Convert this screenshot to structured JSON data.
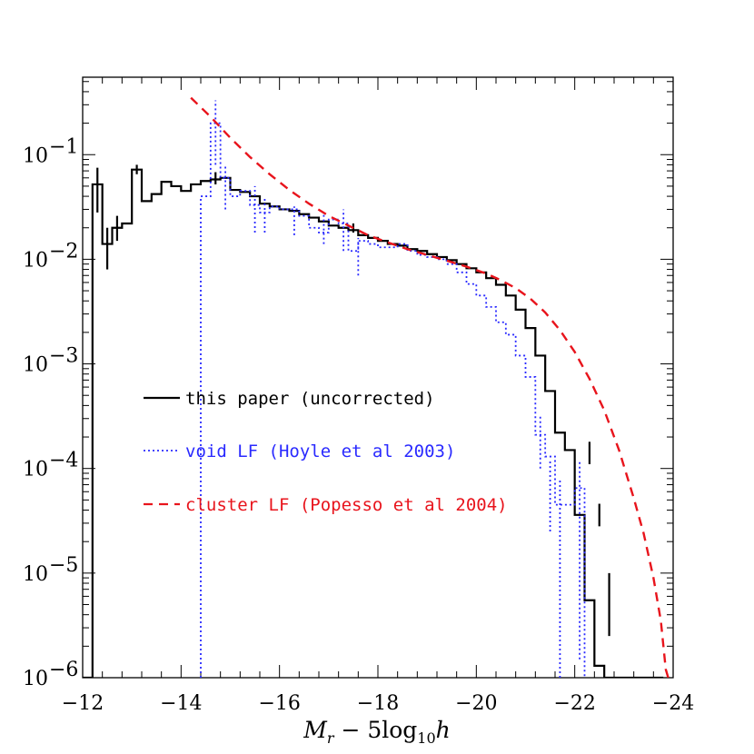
{
  "chart_data": {
    "type": "line",
    "xlabel": {
      "main": "M",
      "sub": "r",
      "mid": " − 5log",
      "sub2": "10",
      "tail": "h"
    },
    "ylabel": "",
    "xlim": [
      -12,
      -24
    ],
    "ylim": [
      1e-06,
      1
    ],
    "y_scale": "log",
    "x_ticks": [
      -12,
      -14,
      -16,
      -18,
      -20,
      -22,
      -24
    ],
    "x_tick_labels": [
      "−12",
      "−14",
      "−16",
      "−18",
      "−20",
      "−22",
      "−24"
    ],
    "y_ticks": [
      {
        "value": 1e-06,
        "base": "10",
        "exp": "−6"
      },
      {
        "value": 1e-05,
        "base": "10",
        "exp": "−5"
      },
      {
        "value": 0.0001,
        "base": "10",
        "exp": "−4"
      },
      {
        "value": 0.001,
        "base": "10",
        "exp": "−3"
      },
      {
        "value": 0.01,
        "base": "10",
        "exp": "−2"
      },
      {
        "value": 0.1,
        "base": "10",
        "exp": "−1"
      }
    ],
    "legend": {
      "placement": "center-left",
      "entries": [
        {
          "label": "this paper (uncorrected)",
          "color": "#000000",
          "style": "solid"
        },
        {
          "label": "void LF (Hoyle et al 2003)",
          "color": "#2a2aff",
          "style": "dotted"
        },
        {
          "label": "cluster LF (Popesso et al 2004)",
          "color": "#e8141c",
          "style": "dashed"
        }
      ]
    },
    "series": [
      {
        "key": "this_paper",
        "kind": "step",
        "color": "#000000",
        "bin_edges": [
          -12.0,
          -12.2,
          -12.4,
          -12.6,
          -12.8,
          -13.0,
          -13.2,
          -13.4,
          -13.6,
          -13.8,
          -14.0,
          -14.2,
          -14.4,
          -14.6,
          -14.8,
          -15.0,
          -15.2,
          -15.4,
          -15.6,
          -15.8,
          -16.0,
          -16.2,
          -16.4,
          -16.6,
          -16.8,
          -17.0,
          -17.2,
          -17.4,
          -17.6,
          -17.8,
          -18.0,
          -18.2,
          -18.4,
          -18.6,
          -18.8,
          -19.0,
          -19.2,
          -19.4,
          -19.6,
          -19.8,
          -20.0,
          -20.2,
          -20.4,
          -20.6,
          -20.8,
          -21.0,
          -21.2,
          -21.4,
          -21.6,
          -21.8,
          -22.0,
          -22.2,
          -22.4,
          -22.6,
          -22.8,
          -23.0,
          -23.2,
          -23.4,
          -23.6,
          -23.8
        ],
        "values": [
          1e-06,
          0.052,
          0.014,
          0.02,
          0.022,
          0.072,
          0.036,
          0.042,
          0.055,
          0.05,
          0.045,
          0.052,
          0.056,
          0.058,
          0.06,
          0.046,
          0.044,
          0.04,
          0.034,
          0.032,
          0.03,
          0.029,
          0.027,
          0.025,
          0.023,
          0.021,
          0.02,
          0.019,
          0.017,
          0.016,
          0.015,
          0.014,
          0.0135,
          0.0125,
          0.012,
          0.0112,
          0.0105,
          0.0098,
          0.009,
          0.0082,
          0.0075,
          0.0066,
          0.0057,
          0.0045,
          0.0033,
          0.0022,
          0.0012,
          0.00055,
          0.00022,
          0.00015,
          3.6e-05,
          5.5e-06,
          1.3e-06,
          1e-06,
          1e-06,
          1e-06,
          1e-06,
          1e-06,
          1e-06
        ],
        "error_bars": [
          {
            "x": -12.3,
            "lo": 0.028,
            "hi": 0.075
          },
          {
            "x": -12.5,
            "lo": 0.008,
            "hi": 0.02
          },
          {
            "x": -12.7,
            "lo": 0.015,
            "hi": 0.026
          },
          {
            "x": -13.1,
            "lo": 0.065,
            "hi": 0.08
          },
          {
            "x": -14.7,
            "lo": 0.052,
            "hi": 0.068
          },
          {
            "x": -17.5,
            "lo": 0.018,
            "hi": 0.022
          },
          {
            "x": -22.3,
            "lo": 0.00011,
            "hi": 0.00018
          },
          {
            "x": -22.5,
            "lo": 2.8e-05,
            "hi": 4.6e-05
          },
          {
            "x": -22.7,
            "lo": 2.5e-06,
            "hi": 1e-05
          }
        ]
      },
      {
        "key": "void_lf",
        "kind": "step",
        "color": "#2a2aff",
        "bin_edges": [
          -14.4,
          -14.6,
          -14.8,
          -15.0,
          -15.2,
          -15.4,
          -15.6,
          -15.8,
          -16.0,
          -16.2,
          -16.4,
          -16.6,
          -16.8,
          -17.0,
          -17.2,
          -17.4,
          -17.6,
          -17.8,
          -18.0,
          -18.2,
          -18.4,
          -18.6,
          -18.8,
          -19.0,
          -19.2,
          -19.4,
          -19.6,
          -19.8,
          -20.0,
          -20.2,
          -20.4,
          -20.6,
          -20.8,
          -21.0,
          -21.2,
          -21.4,
          -21.6,
          -21.8,
          -22.0,
          -22.2
        ],
        "values": [
          0.04,
          0.2,
          0.06,
          0.04,
          0.045,
          0.033,
          0.028,
          0.032,
          0.03,
          0.03,
          0.026,
          0.02,
          0.018,
          0.024,
          0.022,
          0.012,
          0.015,
          0.014,
          0.013,
          0.013,
          0.014,
          0.012,
          0.011,
          0.0105,
          0.01,
          0.009,
          0.0075,
          0.0058,
          0.0045,
          0.0035,
          0.0025,
          0.0019,
          0.0012,
          0.00075,
          0.00021,
          0.00013,
          4.5e-05,
          4.5e-05,
          6.5e-05
        ],
        "error_bars": [
          {
            "x": -14.7,
            "lo": 0.08,
            "hi": 0.33
          },
          {
            "x": -14.9,
            "lo": 0.03,
            "hi": 0.08
          },
          {
            "x": -15.5,
            "lo": 0.018,
            "hi": 0.05
          },
          {
            "x": -15.7,
            "lo": 0.018,
            "hi": 0.04
          },
          {
            "x": -16.3,
            "lo": 0.017,
            "hi": 0.032
          },
          {
            "x": -16.9,
            "lo": 0.014,
            "hi": 0.028
          },
          {
            "x": -17.3,
            "lo": 0.012,
            "hi": 0.03
          },
          {
            "x": -17.6,
            "lo": 0.007,
            "hi": 0.016
          },
          {
            "x": -21.3,
            "lo": 0.0001,
            "hi": 0.00032
          },
          {
            "x": -21.5,
            "lo": 2.5e-05,
            "hi": 0.00012
          },
          {
            "x": -21.7,
            "lo": 1e-06,
            "hi": 8e-05
          },
          {
            "x": -22.1,
            "lo": 1.5e-06,
            "hi": 0.00012
          }
        ]
      },
      {
        "key": "cluster_lf",
        "kind": "curve",
        "color": "#e8141c",
        "points": [
          [
            -14.2,
            0.35
          ],
          [
            -14.6,
            0.23
          ],
          [
            -15.0,
            0.145
          ],
          [
            -15.4,
            0.095
          ],
          [
            -15.8,
            0.065
          ],
          [
            -16.2,
            0.046
          ],
          [
            -16.6,
            0.034
          ],
          [
            -17.0,
            0.026
          ],
          [
            -17.4,
            0.021
          ],
          [
            -17.8,
            0.017
          ],
          [
            -18.2,
            0.0145
          ],
          [
            -18.6,
            0.0125
          ],
          [
            -19.0,
            0.011
          ],
          [
            -19.4,
            0.0097
          ],
          [
            -19.8,
            0.0085
          ],
          [
            -20.2,
            0.0073
          ],
          [
            -20.5,
            0.0063
          ],
          [
            -20.8,
            0.0053
          ],
          [
            -21.1,
            0.0042
          ],
          [
            -21.4,
            0.0031
          ],
          [
            -21.7,
            0.0021
          ],
          [
            -22.0,
            0.0013
          ],
          [
            -22.3,
            0.00072
          ],
          [
            -22.6,
            0.00036
          ],
          [
            -22.9,
            0.00015
          ],
          [
            -23.2,
            5.2e-05
          ],
          [
            -23.4,
            2.4e-05
          ],
          [
            -23.6,
            9e-06
          ],
          [
            -23.75,
            3.5e-06
          ],
          [
            -23.85,
            1.2e-06
          ],
          [
            -23.9,
            1e-06
          ]
        ]
      }
    ]
  }
}
